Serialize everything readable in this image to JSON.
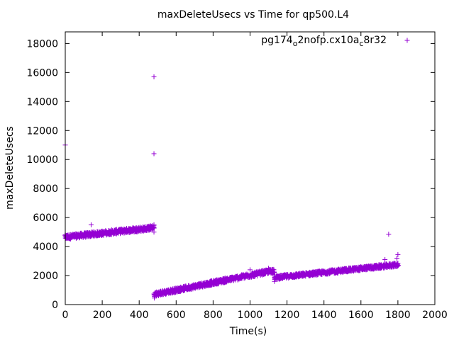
{
  "chart_data": {
    "type": "scatter",
    "title": "maxDeleteUsecs vs Time for qp500.L4",
    "xlabel": "Time(s)",
    "ylabel": "maxDeleteUsecs",
    "xlim": [
      0,
      2000
    ],
    "ylim": [
      0,
      18800
    ],
    "xticks": [
      0,
      200,
      400,
      600,
      800,
      1000,
      1200,
      1400,
      1600,
      1800,
      2000
    ],
    "yticks": [
      0,
      2000,
      4000,
      6000,
      8000,
      10000,
      12000,
      14000,
      16000,
      18000
    ],
    "grid": false,
    "legend_position": "top-right",
    "marker": "plus",
    "color": "#9400d3",
    "series": [
      {
        "name": "pg174_o2nofp.cx10a_c8r32",
        "segments": [
          {
            "x_start": 0,
            "x_end": 480,
            "x_step": 4,
            "y_start": 4650,
            "y_end": 5300,
            "jitter": 160
          },
          {
            "x_start": 482,
            "x_end": 1130,
            "x_step": 4,
            "y_start": 700,
            "y_end": 2350,
            "jitter": 150
          },
          {
            "x_start": 1132,
            "x_end": 1800,
            "x_step": 4,
            "y_start": 1850,
            "y_end": 2750,
            "jitter": 130
          }
        ],
        "outliers": [
          {
            "x": 0,
            "y": 11000
          },
          {
            "x": 480,
            "y": 15700
          },
          {
            "x": 480,
            "y": 10400
          },
          {
            "x": 480,
            "y": 5500
          },
          {
            "x": 480,
            "y": 5000
          },
          {
            "x": 140,
            "y": 5500
          },
          {
            "x": 1750,
            "y": 4850
          },
          {
            "x": 1800,
            "y": 3450
          },
          {
            "x": 1795,
            "y": 3200
          },
          {
            "x": 1730,
            "y": 3100
          },
          {
            "x": 482,
            "y": 450
          },
          {
            "x": 1132,
            "y": 1600
          },
          {
            "x": 1000,
            "y": 2400
          },
          {
            "x": 1100,
            "y": 2500
          }
        ]
      }
    ]
  }
}
